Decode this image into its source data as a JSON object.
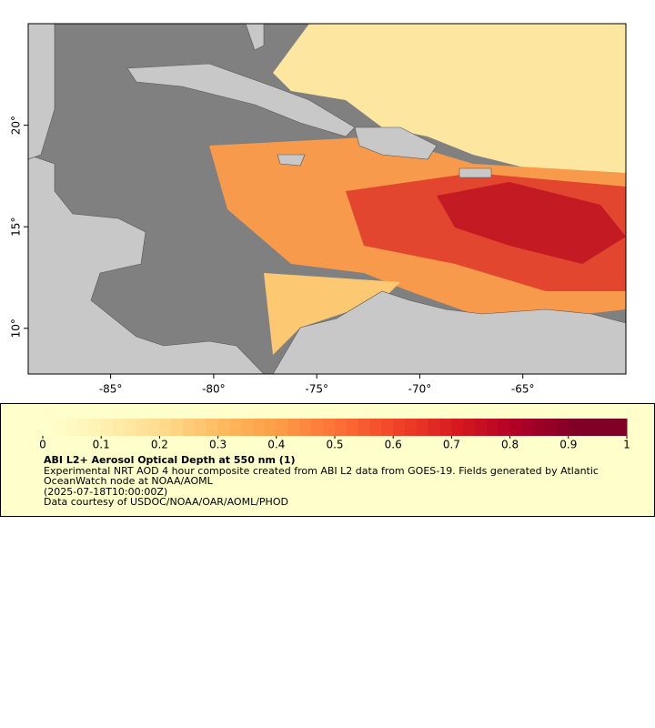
{
  "chart_data": {
    "type": "map",
    "xlim": [
      -89,
      -60
    ],
    "ylim": [
      7.75,
      25
    ],
    "xticks": [
      {
        "value": -85,
        "label": "-85°"
      },
      {
        "value": -80,
        "label": "-80°"
      },
      {
        "value": -75,
        "label": "-75°"
      },
      {
        "value": -70,
        "label": "-70°"
      },
      {
        "value": -65,
        "label": "-65°"
      }
    ],
    "yticks": [
      {
        "value": 10,
        "label": "10°"
      },
      {
        "value": 15,
        "label": "15°"
      },
      {
        "value": 20,
        "label": "20°"
      }
    ],
    "colorbar": {
      "lim": [
        0,
        1
      ],
      "ticks": [
        0,
        0.1,
        0.2,
        0.3,
        0.4,
        0.5,
        0.6,
        0.7,
        0.8,
        0.9,
        1
      ],
      "colors": [
        "#ffffcc",
        "#fff0b0",
        "#fed98a",
        "#feb95e",
        "#fd9a45",
        "#fc6e35",
        "#f04128",
        "#d7191f",
        "#b10026",
        "#800026"
      ]
    },
    "title": "ABI L2+ Aerosol Optical Depth at 550 nm (1)",
    "description": "Experimental NRT AOD 4 hour composite created from ABI L2 data from GOES-19. Fields generated by Atlantic OceanWatch node at NOAA/AOML",
    "time": "(2025-07-18T10:00:00Z)",
    "credit": "Data courtesy of USDOC/NOAA/OAR/AOML/PHOD"
  }
}
